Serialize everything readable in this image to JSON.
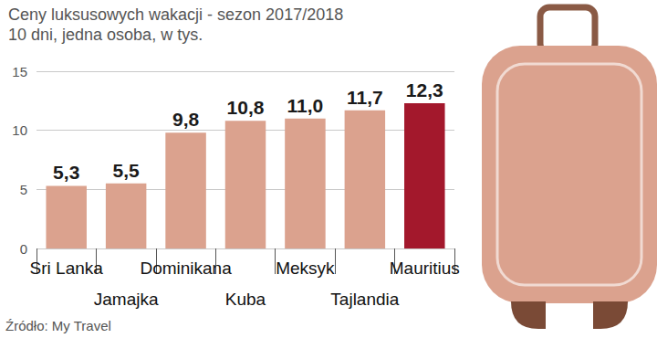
{
  "chart_data": {
    "type": "bar",
    "title": "Ceny luksusowych wakacji - sezon 2017/2018",
    "subtitle": "10 dni, jedna osoba, w tys.",
    "source": "Źródło: My Travel",
    "categories": [
      "Sri Lanka",
      "Jamajka",
      "Dominikana",
      "Kuba",
      "Meksyk",
      "Tajlandia",
      "Mauritius"
    ],
    "values": [
      5.3,
      5.5,
      9.8,
      10.8,
      11.0,
      11.7,
      12.3
    ],
    "value_labels": [
      "5,3",
      "5,5",
      "9,8",
      "10,8",
      "11,0",
      "11,7",
      "12,3"
    ],
    "colors": [
      "#dba28e",
      "#dba28e",
      "#dba28e",
      "#dba28e",
      "#dba28e",
      "#dba28e",
      "#a3182c"
    ],
    "ylim": [
      0,
      15
    ],
    "yticks": [
      0,
      5,
      10,
      15
    ],
    "grid": true,
    "data_labels": true
  }
}
